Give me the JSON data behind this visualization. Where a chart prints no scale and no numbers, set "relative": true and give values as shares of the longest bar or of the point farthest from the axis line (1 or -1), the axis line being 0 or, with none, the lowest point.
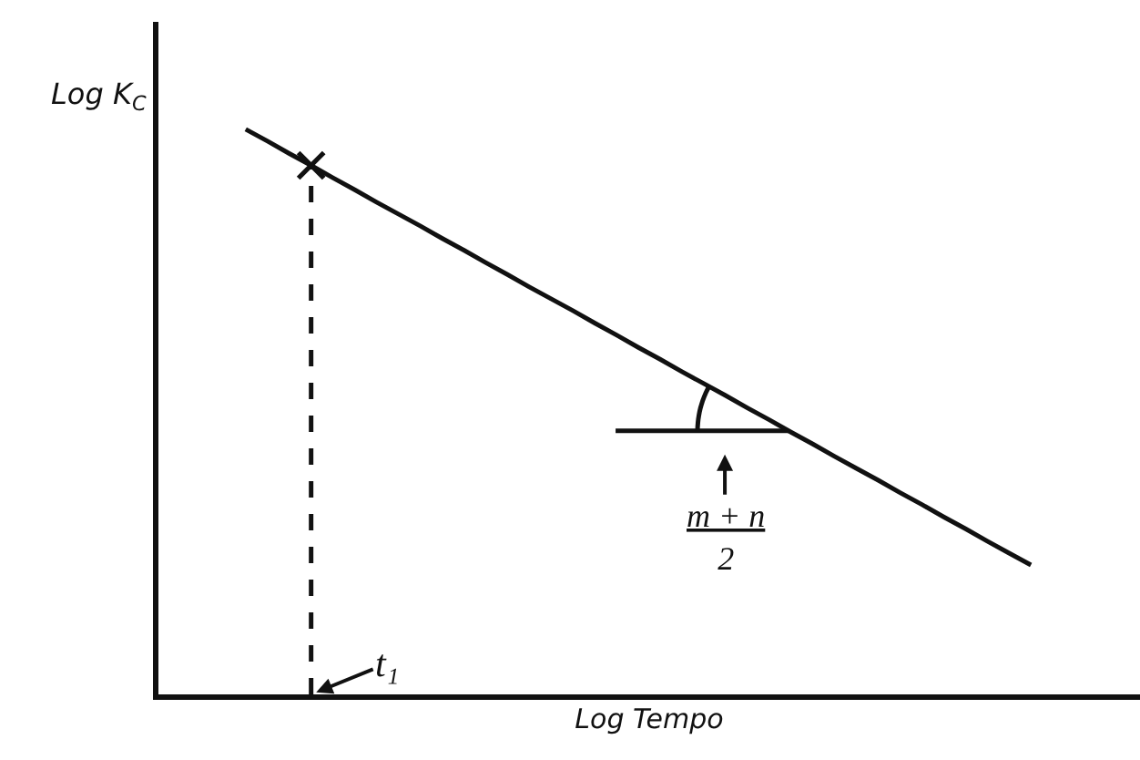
{
  "chart_data": {
    "type": "line",
    "relative": true,
    "xlabel": "Log Tempo",
    "ylabel": "Log K$_{C}$",
    "categories": [
      null,
      null,
      null,
      null,
      null,
      null,
      null,
      null,
      null,
      null,
      null,
      null,
      null,
      null,
      null,
      null,
      null,
      null,
      null,
      null,
      null,
      null,
      null,
      null,
      null,
      null,
      null,
      null,
      null,
      null,
      null,
      null,
      null,
      null,
      null,
      null,
      null,
      null,
      null,
      null,
      null,
      null,
      null,
      null,
      null,
      null
    ],
    "series": [
      {
        "color": "#111111",
        "values": [
          null,
          null,
          null,
          null,
          1.0,
          0.979,
          0.957,
          0.936,
          0.914,
          0.893,
          0.871,
          0.85,
          0.829,
          0.807,
          0.786,
          0.764,
          0.743,
          0.721,
          0.7,
          0.679,
          0.657,
          0.636,
          0.614,
          0.593,
          0.571,
          0.55,
          0.529,
          0.507,
          0.486,
          0.464,
          0.443,
          0.421,
          0.4,
          0.379,
          0.357,
          0.336,
          0.314,
          0.293,
          0.271,
          0.25,
          0.229,
          null,
          null,
          null,
          null,
          null
        ]
      },
      {
        "marker": "cross",
        "color": "#111111",
        "values": [
          null,
          null,
          null,
          null,
          null,
          null,
          null,
          0.936,
          null,
          null,
          null,
          null,
          null,
          null,
          null,
          null,
          null,
          null,
          null,
          null,
          null,
          null,
          null,
          null,
          null,
          null,
          null,
          null,
          null,
          null,
          null,
          null,
          null,
          null,
          null,
          null,
          null,
          null,
          null,
          null,
          null,
          null,
          null,
          null,
          null,
          null
        ]
      }
    ],
    "ref_lines": [
      {
        "axis": "x",
        "label": "t₁",
        "color": "#111111",
        "line_style": "dashed"
      }
    ],
    "annotations": [
      "m + n\n2"
    ]
  }
}
